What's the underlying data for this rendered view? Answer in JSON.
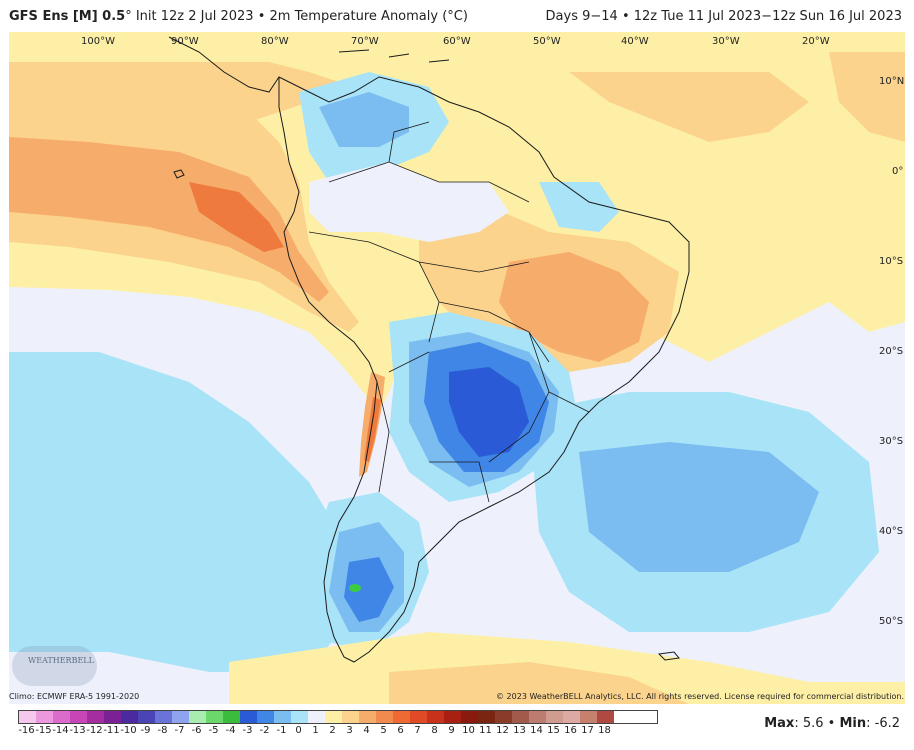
{
  "header": {
    "model": "GFS Ens [M] 0.5",
    "degree": "°",
    "init": " Init 12z 2 Jul 2023 • 2m Temperature Anomaly (°C)",
    "valid": "Days 9−14 • 12z Tue 11 Jul 2023−12z Sun 16 Jul 2023"
  },
  "map": {
    "region": "South America",
    "longitude_labels": [
      "100°W",
      "90°W",
      "80°W",
      "70°W",
      "60°W",
      "50°W",
      "40°W",
      "30°W",
      "20°W"
    ],
    "latitude_labels": [
      "10°N",
      "0°",
      "10°S",
      "20°S",
      "30°S",
      "40°S",
      "50°S"
    ],
    "colors": {
      "ocean_neutral": "#eef1fb",
      "pale_yellow": "#fdf0a6",
      "light_orange": "#fbd38c",
      "orange": "#f6ac6a",
      "dark_orange": "#ee7a3e",
      "light_blue": "#a9e3f7",
      "medium_blue": "#7bbdf0",
      "blue": "#3f86e6",
      "dark_blue": "#2a5ad6",
      "green": "#3ccc44"
    }
  },
  "footer": {
    "climo": "Climo: ECMWF ERA-5 1991-2020",
    "copyright": "© 2023 WeatherBELL Analytics, LLC. All rights reserved. License required for commercial distribution.",
    "logo": "WEATHERBELL"
  },
  "legend": {
    "labels": [
      "-16",
      "-15",
      "-14",
      "-13",
      "-12",
      "-11",
      "-10",
      "-9",
      "-8",
      "-7",
      "-6",
      "-5",
      "-4",
      "-3",
      "-2",
      "-1",
      "0",
      "1",
      "2",
      "3",
      "4",
      "5",
      "6",
      "7",
      "8",
      "9",
      "10",
      "11",
      "12",
      "13",
      "14",
      "15",
      "16",
      "17",
      "18"
    ],
    "colors": [
      "#f6c8ee",
      "#ec98dd",
      "#dc6ccb",
      "#c646b8",
      "#a42ea0",
      "#7c2096",
      "#4a2a9e",
      "#4a44b6",
      "#6a74d8",
      "#8ea4ee",
      "#a8ecb0",
      "#6ad86a",
      "#3cbc3c",
      "#2a5ad6",
      "#3f86e6",
      "#7bbdf0",
      "#a9e3f7",
      "#eef1fb",
      "#fdf0a6",
      "#fbd38c",
      "#f6ac6a",
      "#f08a4e",
      "#ee6a32",
      "#e04a24",
      "#c8321c",
      "#a82012",
      "#8a1a0e",
      "#7a2412",
      "#8a3c28",
      "#a25a4a",
      "#bc7c70",
      "#d09c92",
      "#dcaaa2",
      "#c8806e",
      "#b04a40"
    ],
    "max_label": "Max",
    "max": ": 5.6",
    "sep": " • ",
    "min_label": "Min",
    "min": ": -6.2"
  }
}
